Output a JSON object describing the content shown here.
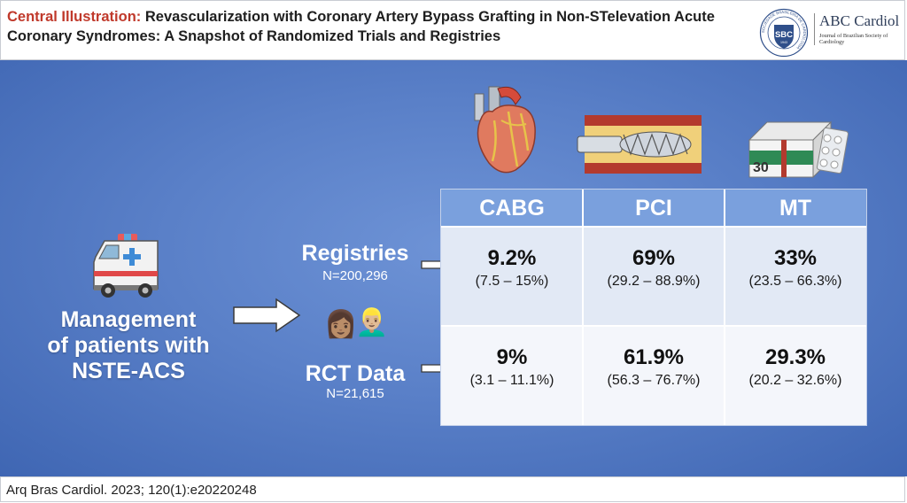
{
  "header": {
    "title_lead": "Central Illustration:",
    "title_rest": " Revascularization with Coronary Artery Bypass Grafting in Non-STelevation Acute Coronary Syndromes: A Snapshot of Randomized Trials and Registries",
    "logo_abbrev": "SBC",
    "logo_ring_text": "SOCIEDADE BRASILEIRA DE CARDIOLOGIA",
    "logo_year": "1943",
    "brand_name": "ABC Cardiol",
    "brand_subtitle": "Journal of Brazilian Society of Cardiology"
  },
  "left": {
    "ambulance_icon": "ambulance-icon",
    "management_lines": [
      "Management",
      "of patients with",
      "NSTE-ACS"
    ]
  },
  "sources": {
    "registries": {
      "title": "Registries",
      "n": "N=200,296"
    },
    "rct": {
      "title": "RCT Data",
      "n": "N=21,615"
    },
    "patients_icons": [
      "👩🏽",
      "👱🏼‍♂️"
    ]
  },
  "table": {
    "headers": [
      "CABG",
      "PCI",
      "MT"
    ],
    "rows": [
      {
        "cells": [
          {
            "pct": "9.2%",
            "range": "(7.5 – 15%)"
          },
          {
            "pct": "69%",
            "range": "(29.2 – 88.9%)"
          },
          {
            "pct": "33%",
            "range": "(23.5 – 66.3%)"
          }
        ]
      },
      {
        "cells": [
          {
            "pct": "9%",
            "range": "(3.1 – 11.1%)"
          },
          {
            "pct": "61.9%",
            "range": "(56.3 – 76.7%)"
          },
          {
            "pct": "29.3%",
            "range": "(20.2 – 32.6%)"
          }
        ]
      }
    ],
    "column_icons": [
      "heart-bypass-icon",
      "stent-catheter-icon",
      "medication-box-icon"
    ]
  },
  "footer": {
    "citation": "Arq Bras Cardiol. 2023; 120(1):e20220248"
  },
  "colors": {
    "accent_red": "#c0392b",
    "panel_blue": "#5a80c8",
    "header_cell": "#7aa0dd"
  }
}
